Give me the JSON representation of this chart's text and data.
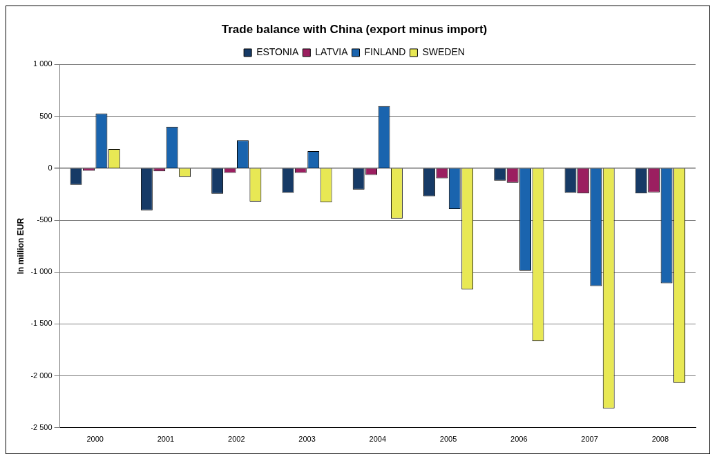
{
  "chart_data": {
    "type": "bar",
    "title": "Trade balance with China (export minus import)",
    "ylabel": "In million EUR",
    "categories": [
      "2000",
      "2001",
      "2002",
      "2003",
      "2004",
      "2005",
      "2006",
      "2007",
      "2008"
    ],
    "series": [
      {
        "name": "ESTONIA",
        "color": "#163a66",
        "values": [
          -160,
          -405,
          -245,
          -235,
          -205,
          -270,
          -120,
          -235,
          -243
        ]
      },
      {
        "name": "LATVIA",
        "color": "#9b1f60",
        "values": [
          -25,
          -30,
          -45,
          -45,
          -65,
          -98,
          -140,
          -243,
          -233
        ]
      },
      {
        "name": "FINLAND",
        "color": "#1a64ae",
        "values": [
          528,
          400,
          270,
          165,
          598,
          -393,
          -985,
          -1135,
          -1108
        ]
      },
      {
        "name": "SWEDEN",
        "color": "#e8e854",
        "values": [
          185,
          -83,
          -320,
          -328,
          -485,
          -1168,
          -1665,
          -2313,
          -2068
        ]
      }
    ],
    "ylim": [
      -2500,
      1000
    ],
    "yticks": [
      {
        "value": -2500,
        "label": "-2 500"
      },
      {
        "value": -2000,
        "label": "-2 000"
      },
      {
        "value": -1500,
        "label": "-1 500"
      },
      {
        "value": -1000,
        "label": "-1 000"
      },
      {
        "value": -500,
        "label": "-500"
      },
      0,
      500,
      {
        "value": 1000,
        "label": "1 000"
      }
    ],
    "grid": "y",
    "legend": "top"
  }
}
